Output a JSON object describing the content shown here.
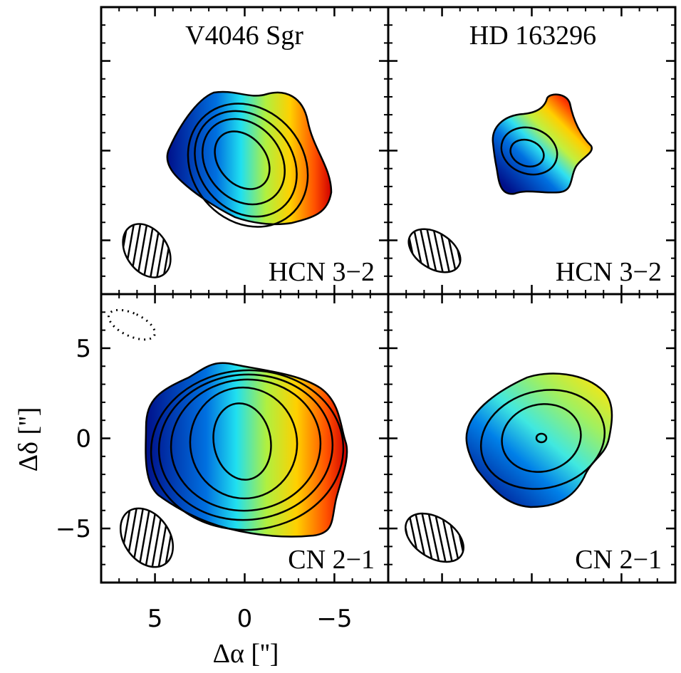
{
  "chart_data": [
    {
      "type": "map",
      "title": "V4046 Sgr",
      "label": "HCN 3−2"
    },
    {
      "type": "map",
      "title": "HD 163296",
      "label": "HCN 3−2"
    },
    {
      "type": "map",
      "label": "CN 2−1",
      "xlabel": "Δα ['']",
      "ylabel": "Δδ ['']",
      "xlim": [
        8,
        -8
      ],
      "ylim": [
        -8,
        8
      ],
      "xticks": [
        5,
        0,
        {
          "value": -5,
          "label": "−5"
        }
      ],
      "yticks": [
        {
          "value": -5,
          "label": "−5"
        },
        0,
        5
      ]
    },
    {
      "type": "map",
      "label": "CN 2−1"
    }
  ]
}
